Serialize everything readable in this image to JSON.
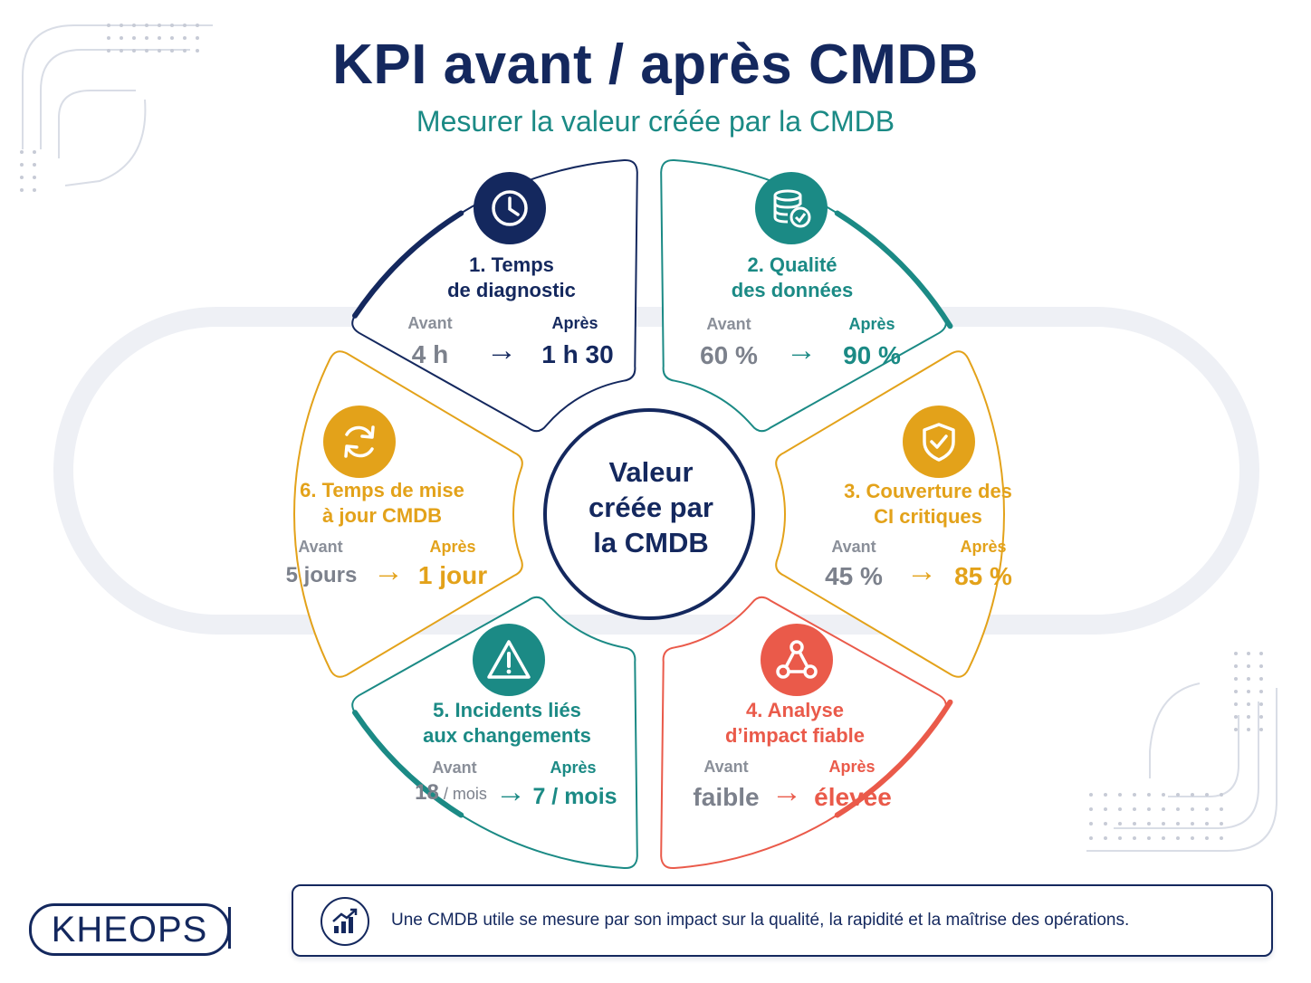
{
  "header": {
    "title": "KPI avant / après CMDB",
    "subtitle": "Mesurer la valeur créée par la CMDB"
  },
  "center": {
    "line1": "Valeur",
    "line2": "créée par",
    "line3": "la CMDB"
  },
  "segments": [
    {
      "title_line1": "1. Temps",
      "title_line2": "de diagnostic",
      "before_label": "Avant",
      "after_label": "Après",
      "before": "4 h",
      "after": "1 h 30",
      "color": "#14285e",
      "icon": "clock-icon"
    },
    {
      "title_line1": "2. Qualité",
      "title_line2": "des données",
      "before_label": "Avant",
      "after_label": "Après",
      "before": "60 %",
      "after": "90 %",
      "color": "#1b8a85",
      "icon": "database-check-icon"
    },
    {
      "title_line1": "3. Couverture des",
      "title_line2": "CI critiques",
      "before_label": "Avant",
      "after_label": "Après",
      "before": "45 %",
      "after": "85 %",
      "color": "#e3a21a",
      "icon": "shield-check-icon"
    },
    {
      "title_line1": "4. Analyse",
      "title_line2": "d’impact fiable",
      "before_label": "Avant",
      "after_label": "Après",
      "before": "faible",
      "after": "élevée",
      "color": "#ea5a4a",
      "icon": "network-icon"
    },
    {
      "title_line1": "5. Incidents liés",
      "title_line2": "aux changements",
      "before_label": "Avant",
      "after_label": "Après",
      "before": "18",
      "before_unit": " / mois",
      "after": "7 / mois",
      "color": "#1b8a85",
      "icon": "warning-icon"
    },
    {
      "title_line1": "6. Temps de mise",
      "title_line2": "à jour CMDB",
      "before_label": "Avant",
      "after_label": "Après",
      "before": "5 jours",
      "after": "1 jour",
      "color": "#e3a21a",
      "icon": "refresh-icon"
    }
  ],
  "arrow_glyph": "→",
  "footer": {
    "text": "Une CMDB utile se mesure par son impact sur la qualité, la rapidité et la maîtrise des opérations.",
    "icon": "growth-chart-icon"
  },
  "logo": {
    "text": "KHEOPS"
  }
}
